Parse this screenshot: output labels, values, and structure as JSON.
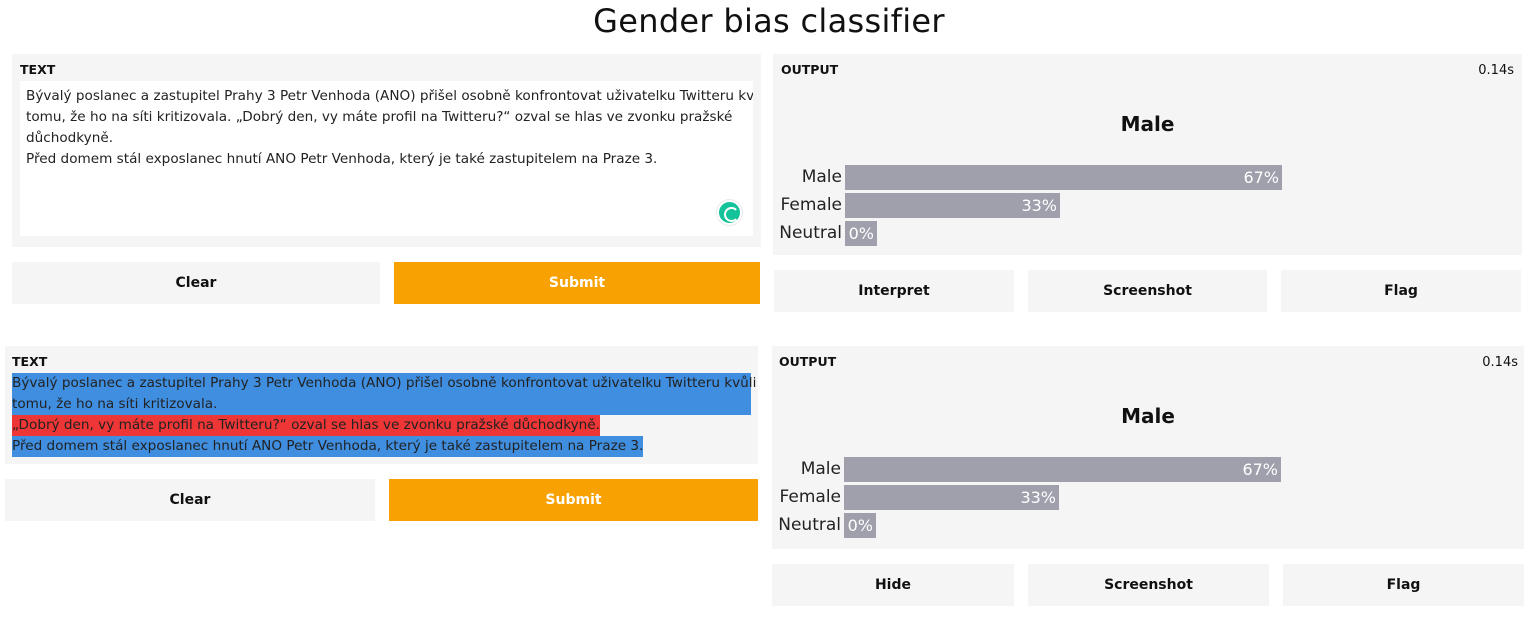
{
  "app": {
    "title": "Gender bias classifier"
  },
  "colors": {
    "submit": "#f8a102",
    "bar": "#9fa0ac",
    "highlight_blue": "#3f8ee0",
    "highlight_red": "#ee3636",
    "grammarly": "#15c39a"
  },
  "top": {
    "input": {
      "label": "TEXT",
      "lines": [
        "Bývalý poslanec a zastupitel Prahy 3 Petr Venhoda (ANO) přišel osobně konfrontovat uživatelku Twitteru kvůli",
        "tomu, že ho na síti kritizovala. „Dobrý den, vy máte profil na Twitteru?“ ozval se hlas ve zvonku pražské",
        "důchodkyně.",
        "Před domem stál exposlanec hnutí ANO Petr Venhoda, který je také zastupitelem na Praze 3."
      ]
    },
    "buttons": {
      "clear": "Clear",
      "submit": "Submit"
    },
    "output": {
      "label": "OUTPUT",
      "time": "0.14s",
      "result": "Male",
      "bars": [
        {
          "name": "Male",
          "value": 0.67,
          "pct": "67%"
        },
        {
          "name": "Female",
          "value": 0.33,
          "pct": "33%"
        },
        {
          "name": "Neutral",
          "value": 0.0,
          "pct": "0%"
        }
      ]
    },
    "actions": {
      "interpret": "Interpret",
      "screenshot": "Screenshot",
      "flag": "Flag"
    }
  },
  "bottom": {
    "input": {
      "label": "TEXT",
      "segments": [
        {
          "text": "Bývalý poslanec a zastupitel Prahy 3 Petr Venhoda (ANO) přišel osobně konfrontovat uživatelku Twitteru kvůli",
          "highlight": "blue"
        },
        {
          "text": "tomu, že ho na síti kritizovala.",
          "highlight": "blue"
        },
        {
          "text": "„Dobrý den, vy máte profil na Twitteru?“ ozval se hlas ve zvonku pražské důchodkyně.",
          "highlight": "red"
        },
        {
          "text": "Před domem stál exposlanec hnutí ANO Petr Venhoda, který je také zastupitelem na Praze 3.",
          "highlight": "blue"
        }
      ]
    },
    "buttons": {
      "clear": "Clear",
      "submit": "Submit"
    },
    "output": {
      "label": "OUTPUT",
      "time": "0.14s",
      "result": "Male",
      "bars": [
        {
          "name": "Male",
          "value": 0.67,
          "pct": "67%"
        },
        {
          "name": "Female",
          "value": 0.33,
          "pct": "33%"
        },
        {
          "name": "Neutral",
          "value": 0.0,
          "pct": "0%"
        }
      ]
    },
    "actions": {
      "hide": "Hide",
      "screenshot": "Screenshot",
      "flag": "Flag"
    }
  }
}
